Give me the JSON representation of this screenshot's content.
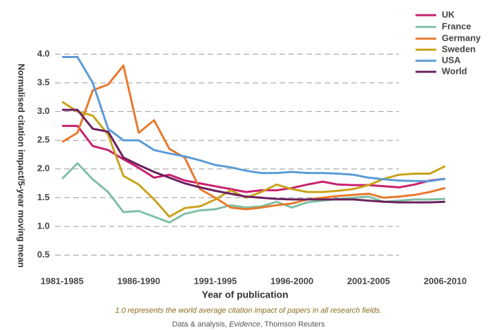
{
  "chart_data": {
    "type": "line",
    "y_label": "Normalised citation impact/5-year moving mean",
    "x_label": "Year of publication",
    "note": "1.0 represents the world average citation impact of papers in all research fields.",
    "source": [
      "Data & analysis, ",
      "Evidence",
      ", Thomson Reuters"
    ],
    "categories": [
      "1981-1985",
      null,
      null,
      null,
      null,
      "1986-1990",
      null,
      null,
      null,
      null,
      "1991-1995",
      null,
      null,
      null,
      null,
      "1996-2000",
      null,
      null,
      null,
      null,
      "2001-2005",
      null,
      null,
      null,
      null,
      "2006-2010"
    ],
    "ylim": [
      0.4,
      4.1
    ],
    "yticks": [
      0.5,
      {
        "value": 1,
        "label": "1.0"
      },
      1.5,
      {
        "value": 2,
        "label": "2.0"
      },
      2.5,
      {
        "value": 3,
        "label": "3.0"
      },
      3.5,
      {
        "value": 4,
        "label": "4.0"
      }
    ],
    "grid": true,
    "legend": "top-right",
    "series": [
      {
        "name": "UK",
        "color": "#c8206e",
        "values": [
          2.75,
          2.75,
          2.4,
          2.33,
          2.17,
          2.02,
          1.85,
          1.9,
          1.8,
          1.75,
          1.7,
          1.65,
          1.6,
          1.63,
          1.63,
          1.67,
          1.73,
          1.78,
          1.73,
          1.72,
          1.72,
          1.7,
          1.68,
          1.73,
          1.8,
          1.83
        ]
      },
      {
        "name": "France",
        "color": "#7fbfa4",
        "values": [
          1.83,
          2.1,
          1.82,
          1.6,
          1.25,
          1.27,
          1.17,
          1.07,
          1.22,
          1.28,
          1.3,
          1.37,
          1.33,
          1.35,
          1.43,
          1.33,
          1.42,
          1.45,
          1.48,
          1.5,
          1.52,
          1.43,
          1.45,
          1.47,
          1.47,
          1.48
        ]
      },
      {
        "name": "Germany",
        "color": "#e8792b",
        "values": [
          2.47,
          2.63,
          3.37,
          3.47,
          3.8,
          2.63,
          2.85,
          2.35,
          2.2,
          1.65,
          1.5,
          1.33,
          1.3,
          1.33,
          1.37,
          1.4,
          1.47,
          1.5,
          1.53,
          1.55,
          1.57,
          1.5,
          1.52,
          1.55,
          1.6,
          1.67
        ]
      },
      {
        "name": "Sweden",
        "color": "#c9a21a",
        "values": [
          3.17,
          3.0,
          2.93,
          2.6,
          1.88,
          1.73,
          1.47,
          1.17,
          1.32,
          1.35,
          1.47,
          1.63,
          1.5,
          1.6,
          1.73,
          1.65,
          1.6,
          1.6,
          1.62,
          1.65,
          1.72,
          1.83,
          1.9,
          1.92,
          1.92,
          2.05
        ]
      },
      {
        "name": "USA",
        "color": "#5b9bd5",
        "values": [
          3.95,
          3.95,
          3.5,
          2.7,
          2.5,
          2.5,
          2.33,
          2.27,
          2.22,
          2.15,
          2.07,
          2.03,
          1.97,
          1.93,
          1.93,
          1.95,
          1.93,
          1.93,
          1.92,
          1.9,
          1.85,
          1.82,
          1.8,
          1.79,
          1.79,
          1.83
        ]
      },
      {
        "name": "World",
        "color": "#6a1f5e",
        "values": [
          3.03,
          3.03,
          2.7,
          2.65,
          2.2,
          2.07,
          1.95,
          1.85,
          1.75,
          1.68,
          1.62,
          1.57,
          1.52,
          1.5,
          1.48,
          1.47,
          1.47,
          1.47,
          1.47,
          1.47,
          1.45,
          1.43,
          1.42,
          1.42,
          1.42,
          1.43
        ]
      }
    ]
  }
}
